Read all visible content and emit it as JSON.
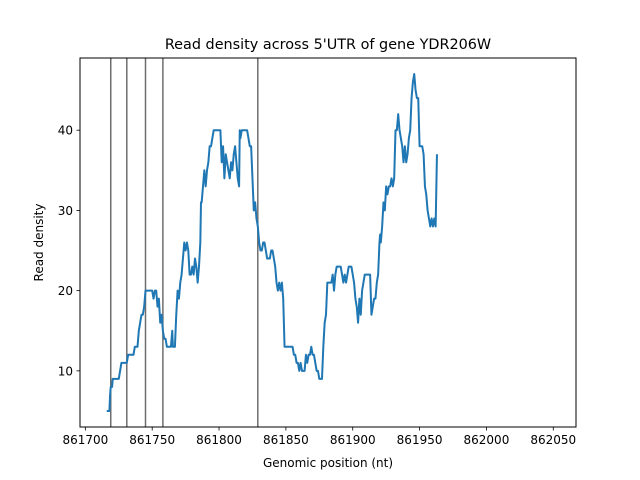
{
  "chart_data": {
    "type": "line",
    "title": "Read density across 5'UTR of gene YDR206W",
    "xlabel": "Genomic position (nt)",
    "ylabel": "Read density",
    "xlim": [
      861696,
      862067
    ],
    "ylim": [
      3,
      49
    ],
    "x_ticks": [
      861700,
      861750,
      861800,
      861850,
      861900,
      861950,
      862000,
      862050
    ],
    "y_ticks": [
      10,
      20,
      30,
      40
    ],
    "vlines": [
      861719,
      861731,
      861745,
      861758,
      861829
    ],
    "grid": false,
    "line_color": "#1f77b4",
    "vline_color": "#6e6e6e",
    "series": [
      {
        "name": "",
        "points": [
          [
            861716,
            5
          ],
          [
            861718,
            5
          ],
          [
            861718.5,
            7
          ],
          [
            861719,
            8
          ],
          [
            861720,
            8
          ],
          [
            861720.5,
            9
          ],
          [
            861722,
            9
          ],
          [
            861725,
            9
          ],
          [
            861726,
            10
          ],
          [
            861727,
            11
          ],
          [
            861730,
            11
          ],
          [
            861731,
            11
          ],
          [
            861732,
            12
          ],
          [
            861736,
            12
          ],
          [
            861737,
            13
          ],
          [
            861739,
            13
          ],
          [
            861740,
            15
          ],
          [
            861741,
            16
          ],
          [
            861742,
            17
          ],
          [
            861743,
            17
          ],
          [
            861744,
            18
          ],
          [
            861745,
            20
          ],
          [
            861750,
            20
          ],
          [
            861751,
            19
          ],
          [
            861752,
            20
          ],
          [
            861753,
            20
          ],
          [
            861754,
            18
          ],
          [
            861755,
            19
          ],
          [
            861756,
            16
          ],
          [
            861757,
            17
          ],
          [
            861758,
            15
          ],
          [
            861759,
            14
          ],
          [
            861760,
            14
          ],
          [
            861761,
            13
          ],
          [
            861764,
            13
          ],
          [
            861765,
            15
          ],
          [
            861765.5,
            13
          ],
          [
            861767,
            13
          ],
          [
            861768,
            17
          ],
          [
            861769,
            20
          ],
          [
            861770,
            19
          ],
          [
            861771,
            21
          ],
          [
            861772,
            22
          ],
          [
            861773,
            24
          ],
          [
            861774,
            26
          ],
          [
            861775,
            25
          ],
          [
            861776,
            26
          ],
          [
            861777,
            25
          ],
          [
            861778,
            22
          ],
          [
            861779,
            22
          ],
          [
            861780,
            23
          ],
          [
            861781,
            22
          ],
          [
            861782,
            24
          ],
          [
            861783,
            23
          ],
          [
            861784,
            21
          ],
          [
            861785,
            23
          ],
          [
            861786,
            26
          ],
          [
            861786.5,
            31
          ],
          [
            861787,
            31
          ],
          [
            861788,
            33
          ],
          [
            861789,
            35
          ],
          [
            861790,
            33
          ],
          [
            861791,
            35
          ],
          [
            861792,
            36
          ],
          [
            861793,
            38
          ],
          [
            861794,
            38
          ],
          [
            861795,
            39
          ],
          [
            861796,
            40
          ],
          [
            861801,
            40
          ],
          [
            861802,
            36
          ],
          [
            861803,
            38
          ],
          [
            861804,
            34
          ],
          [
            861805,
            37
          ],
          [
            861806,
            36
          ],
          [
            861807,
            35
          ],
          [
            861808,
            34
          ],
          [
            861809,
            36
          ],
          [
            861810,
            35
          ],
          [
            861811,
            37
          ],
          [
            861812,
            38
          ],
          [
            861813,
            36
          ],
          [
            861814,
            34
          ],
          [
            861815,
            33
          ],
          [
            861815.5,
            40
          ],
          [
            861816,
            39
          ],
          [
            861817,
            40
          ],
          [
            861821,
            40
          ],
          [
            861822,
            39
          ],
          [
            861823,
            38
          ],
          [
            861824,
            38
          ],
          [
            861825,
            34
          ],
          [
            861826,
            30
          ],
          [
            861827,
            31
          ],
          [
            861828,
            29
          ],
          [
            861829,
            28
          ],
          [
            861830,
            26
          ],
          [
            861831,
            25
          ],
          [
            861832,
            25
          ],
          [
            861833,
            26
          ],
          [
            861834,
            26
          ],
          [
            861835,
            25
          ],
          [
            861836,
            24
          ],
          [
            861838,
            24
          ],
          [
            861839,
            25
          ],
          [
            861840,
            25
          ],
          [
            861841,
            24
          ],
          [
            861842,
            23
          ],
          [
            861843,
            21
          ],
          [
            861844,
            20
          ],
          [
            861845,
            21
          ],
          [
            861846,
            20
          ],
          [
            861847,
            21
          ],
          [
            861848,
            19
          ],
          [
            861849,
            13
          ],
          [
            861850,
            13
          ],
          [
            861855,
            13
          ],
          [
            861856,
            12
          ],
          [
            861857,
            12
          ],
          [
            861858,
            11
          ],
          [
            861859,
            11
          ],
          [
            861860,
            10
          ],
          [
            861861,
            11
          ],
          [
            861862,
            10
          ],
          [
            861864,
            10
          ],
          [
            861865,
            12
          ],
          [
            861866,
            11
          ],
          [
            861867,
            12
          ],
          [
            861868,
            12
          ],
          [
            861869,
            13
          ],
          [
            861870,
            12
          ],
          [
            861871,
            12
          ],
          [
            861872,
            11
          ],
          [
            861873,
            10
          ],
          [
            861874,
            10
          ],
          [
            861875,
            9
          ],
          [
            861877,
            9
          ],
          [
            861878,
            13
          ],
          [
            861879,
            16
          ],
          [
            861880,
            17
          ],
          [
            861881,
            21
          ],
          [
            861884,
            21
          ],
          [
            861885,
            22
          ],
          [
            861886,
            20
          ],
          [
            861887,
            22
          ],
          [
            861888,
            23
          ],
          [
            861891,
            23
          ],
          [
            861892,
            22
          ],
          [
            861893,
            21
          ],
          [
            861894,
            22
          ],
          [
            861895,
            21
          ],
          [
            861896,
            22
          ],
          [
            861897,
            23
          ],
          [
            861899,
            23
          ],
          [
            861900,
            22
          ],
          [
            861901,
            21
          ],
          [
            861902,
            19
          ],
          [
            861903,
            18
          ],
          [
            861904,
            16
          ],
          [
            861905,
            19
          ],
          [
            861906,
            17
          ],
          [
            861907,
            20
          ],
          [
            861908,
            21
          ],
          [
            861909,
            22
          ],
          [
            861913,
            22
          ],
          [
            861914,
            17
          ],
          [
            861915,
            18
          ],
          [
            861916,
            19
          ],
          [
            861917,
            19
          ],
          [
            861918,
            21
          ],
          [
            861919,
            22
          ],
          [
            861920,
            26
          ],
          [
            861920.5,
            27
          ],
          [
            861921,
            26
          ],
          [
            861922,
            28
          ],
          [
            861923,
            31
          ],
          [
            861924,
            30
          ],
          [
            861925,
            33
          ],
          [
            861926,
            32
          ],
          [
            861927,
            33
          ],
          [
            861928,
            33
          ],
          [
            861929,
            34
          ],
          [
            861930,
            33
          ],
          [
            861931,
            34
          ],
          [
            861932,
            40
          ],
          [
            861933,
            40
          ],
          [
            861934,
            42
          ],
          [
            861935,
            40
          ],
          [
            861936,
            39
          ],
          [
            861937,
            38
          ],
          [
            861938,
            36
          ],
          [
            861939,
            38
          ],
          [
            861940,
            36
          ],
          [
            861941,
            37
          ],
          [
            861942,
            39
          ],
          [
            861943,
            40
          ],
          [
            861944,
            44
          ],
          [
            861945,
            46
          ],
          [
            861946,
            47
          ],
          [
            861947,
            45
          ],
          [
            861948,
            44
          ],
          [
            861949,
            44
          ],
          [
            861950,
            38
          ],
          [
            861952,
            38
          ],
          [
            861953,
            37
          ],
          [
            861954,
            33
          ],
          [
            861955,
            32
          ],
          [
            861956,
            30
          ],
          [
            861957,
            29
          ],
          [
            861958,
            28
          ],
          [
            861959,
            29
          ],
          [
            861960,
            28
          ],
          [
            861961,
            29
          ],
          [
            861962,
            28
          ],
          [
            861963,
            37
          ]
        ]
      }
    ]
  }
}
